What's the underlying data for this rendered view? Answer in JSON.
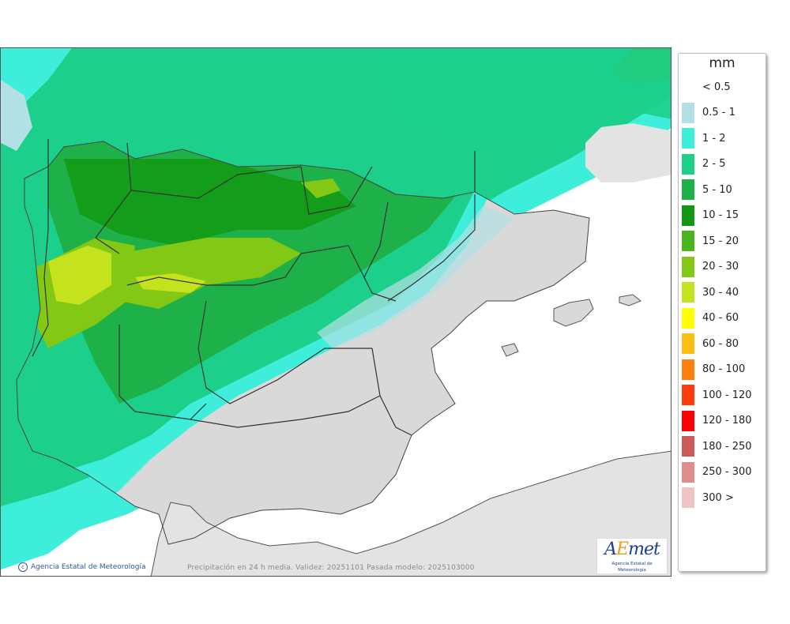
{
  "legend": {
    "unit": "mm",
    "items": [
      {
        "label": "< 0.5",
        "color": "#ffffff"
      },
      {
        "label": "0.5 - 1",
        "color": "#b3e0e4"
      },
      {
        "label": "1 - 2",
        "color": "#3deedb"
      },
      {
        "label": "2 - 5",
        "color": "#1ccf8b"
      },
      {
        "label": "5 - 10",
        "color": "#1fb149"
      },
      {
        "label": "10 - 15",
        "color": "#109810"
      },
      {
        "label": "15 - 20",
        "color": "#4bb51e"
      },
      {
        "label": "20 - 30",
        "color": "#82c814"
      },
      {
        "label": "30 - 40",
        "color": "#c5e31c"
      },
      {
        "label": "40 - 60",
        "color": "#ffff00"
      },
      {
        "label": "60 - 80",
        "color": "#fdbd12"
      },
      {
        "label": "80 - 100",
        "color": "#ff7f0e"
      },
      {
        "label": "100 - 120",
        "color": "#ff3c0c"
      },
      {
        "label": "120 - 180",
        "color": "#ff0000"
      },
      {
        "label": "180 - 250",
        "color": "#cd5a5a"
      },
      {
        "label": "250 - 300",
        "color": "#de8c8c"
      },
      {
        "label": "300 >",
        "color": "#efc4c4"
      }
    ]
  },
  "map": {
    "credit": "Agencia Estatal de Meteorología",
    "caption": "Precipitación en 24 h media. Validez: 20251101 Pasada modelo: 2025103000",
    "logo_text": "AEmet",
    "logo_subtext": "Agencia Estatal de Meteorología"
  }
}
